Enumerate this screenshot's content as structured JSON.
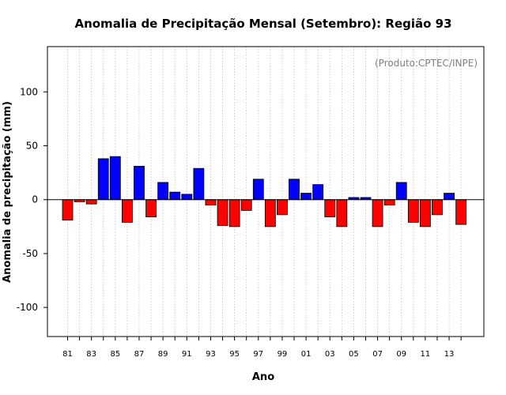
{
  "chart_data": {
    "type": "bar",
    "title": "Anomalia de Precipitação Mensal (Setembro): Região 93",
    "xlabel": "Ano",
    "ylabel": "Anomalia de precipitação (mm)",
    "credit": "(Produto:CPTEC/INPE)",
    "ylim": [
      -127,
      142
    ],
    "y_ticks": [
      -100,
      -50,
      0,
      50,
      100
    ],
    "y_tick_labels": [
      "-100",
      "-50",
      "0",
      "50",
      "100"
    ],
    "grid": "vertical dotted lines at each year",
    "categories": [
      "1981",
      "1982",
      "1983",
      "1984",
      "1985",
      "1986",
      "1987",
      "1988",
      "1989",
      "1990",
      "1991",
      "1992",
      "1993",
      "1994",
      "1995",
      "1996",
      "1997",
      "1998",
      "1999",
      "2000",
      "2001",
      "2002",
      "2003",
      "2004",
      "2005",
      "2006",
      "2007",
      "2008",
      "2009",
      "2010",
      "2011",
      "2012",
      "2013",
      "2014"
    ],
    "x_tick_labels": [
      "81",
      "83",
      "85",
      "87",
      "89",
      "91",
      "93",
      "95",
      "97",
      "99",
      "01",
      "03",
      "05",
      "07",
      "09",
      "11",
      "13"
    ],
    "x_tick_every": 2,
    "values": [
      -19,
      -2,
      -4,
      38,
      40,
      -21,
      31,
      -16,
      16,
      7,
      5,
      29,
      -5,
      -24,
      -25,
      -10,
      19,
      -25,
      -14,
      19,
      6,
      14,
      -16,
      -25,
      2,
      2,
      -25,
      -5,
      16,
      -21,
      -25,
      -14,
      6,
      -23
    ],
    "colors": {
      "positive": "#0000ff",
      "negative": "#ff0000",
      "grid": "#c0c0c0",
      "credit": "#808080"
    }
  }
}
